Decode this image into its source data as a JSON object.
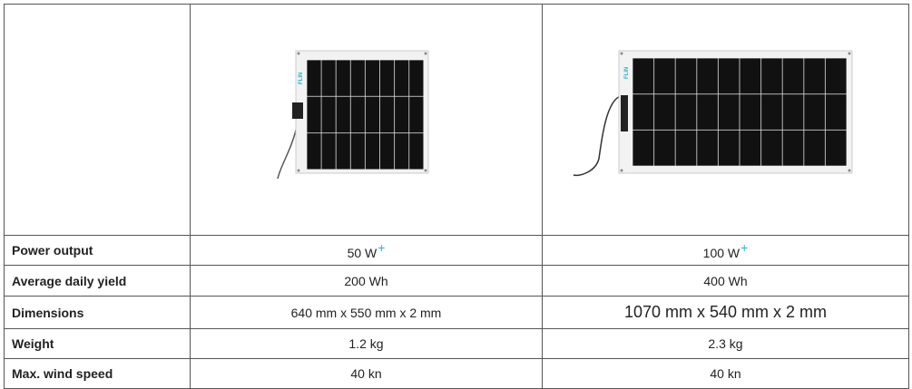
{
  "table": {
    "images": [
      {
        "logo": "FLIN"
      },
      {
        "logo": "FLIN"
      }
    ],
    "rows": [
      {
        "label": "Power output",
        "values": [
          "50 W",
          "100 W"
        ],
        "marks": [
          "+",
          "+"
        ]
      },
      {
        "label": "Average daily yield",
        "values": [
          "200 Wh",
          "400 Wh"
        ]
      },
      {
        "label": "Dimensions",
        "values": [
          "640 mm x 550 mm x 2 mm",
          "1070 mm x 540 mm x 2 mm"
        ]
      },
      {
        "label": "Weight",
        "values": [
          "1.2 kg",
          "2.3 kg"
        ]
      },
      {
        "label": "Max. wind speed",
        "values": [
          "40 kn",
          "40 kn"
        ]
      }
    ]
  }
}
